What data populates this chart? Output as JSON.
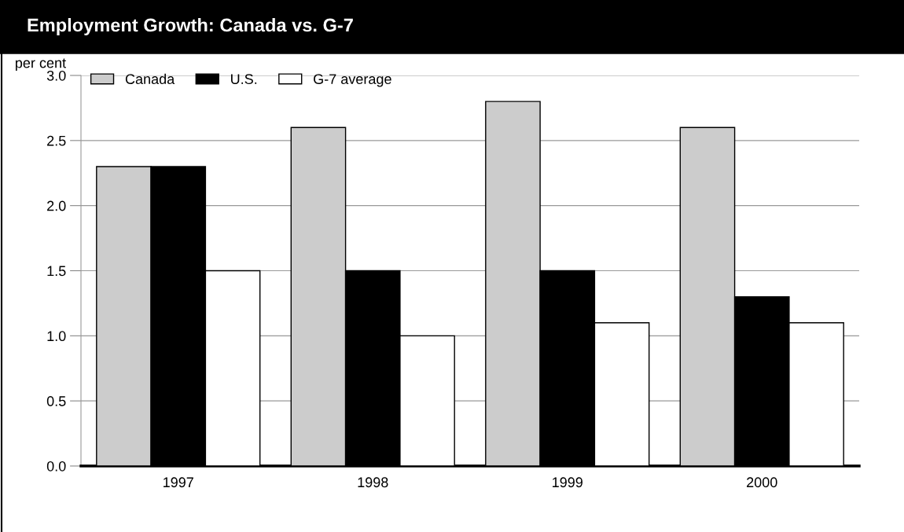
{
  "chart_data": {
    "type": "bar",
    "title": "Employment Growth: Canada vs. G-7",
    "ylabel": "per cent",
    "categories": [
      "1997",
      "1998",
      "1999",
      "2000"
    ],
    "series": [
      {
        "name": "Canada",
        "color": "#cccccc",
        "values": [
          2.3,
          2.6,
          2.8,
          2.6
        ]
      },
      {
        "name": "U.S.",
        "color": "#000000",
        "values": [
          2.3,
          1.5,
          1.5,
          1.3
        ]
      },
      {
        "name": "G-7 average",
        "color": "#ffffff",
        "values": [
          1.5,
          1.0,
          1.1,
          1.1
        ]
      }
    ],
    "ylim": [
      0,
      3.0
    ],
    "yticks": [
      {
        "value": 0,
        "label": "0.0"
      },
      {
        "value": 0.5,
        "label": "0.5"
      },
      {
        "value": 1,
        "label": "1.0"
      },
      {
        "value": 1.5,
        "label": "1.5"
      },
      {
        "value": 2,
        "label": "2.0"
      },
      {
        "value": 2.5,
        "label": "2.5"
      },
      {
        "value": 3,
        "label": "3.0"
      }
    ],
    "grid": "y",
    "legend": "top left"
  }
}
